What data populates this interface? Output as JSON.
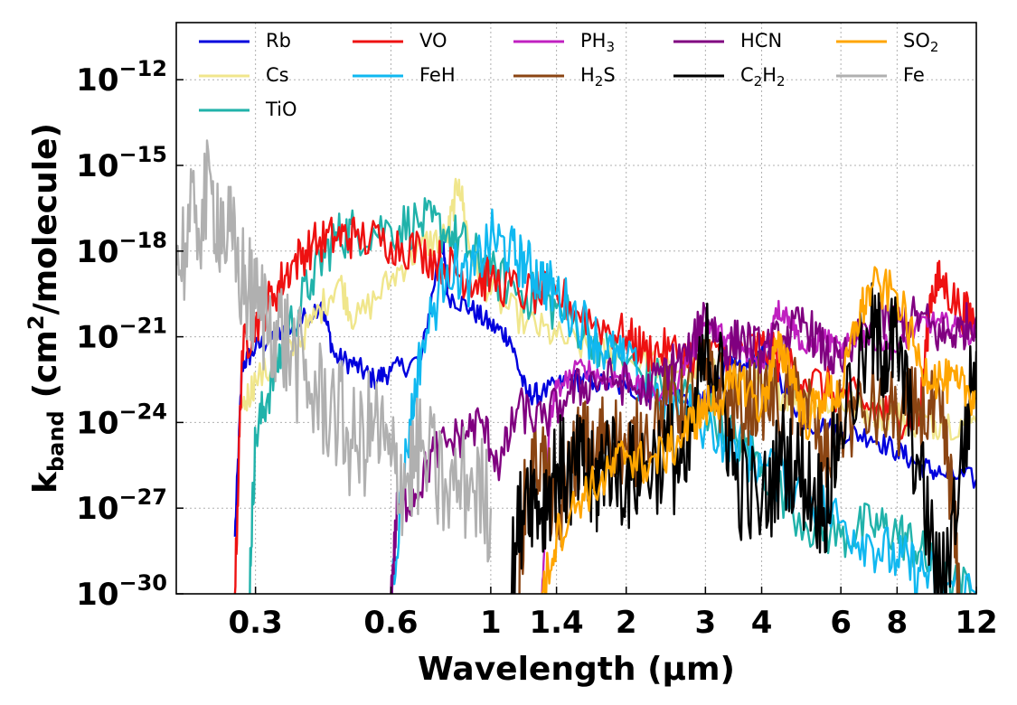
{
  "chart_data": {
    "type": "line",
    "title": "",
    "xlabel": "Wavelength (μm)",
    "ylabel": {
      "base": "k",
      "subscript": "band",
      "unit_open": "(cm",
      "unit_sup": "2",
      "unit_close": "/molecule)"
    },
    "xscale": "log",
    "yscale": "log",
    "xlim": [
      0.2,
      12
    ],
    "ylim": [
      1e-30,
      1e-10
    ],
    "xticks": [
      0.3,
      0.6,
      1,
      1.4,
      2,
      3,
      4,
      6,
      8,
      12
    ],
    "xtick_labels": [
      "0.3",
      "0.6",
      "1",
      "1.4",
      "2",
      "3",
      "4",
      "6",
      "8",
      "12"
    ],
    "yticks": [
      1e-30,
      1e-27,
      1e-24,
      1e-21,
      1e-18,
      1e-15,
      1e-12
    ],
    "ytick_base": "10",
    "ytick_exponents": [
      "−30",
      "−27",
      "−24",
      "−21",
      "−18",
      "−15",
      "−12"
    ],
    "grid": true,
    "legend_position": "top",
    "series": [
      {
        "name": "Rb",
        "label": {
          "text": "Rb"
        },
        "color": "#0000dd",
        "x": [
          0.27,
          0.28,
          0.3,
          0.33,
          0.36,
          0.42,
          0.45,
          0.5,
          0.55,
          0.6,
          0.7,
          0.78,
          0.8,
          0.9,
          1.0,
          1.1,
          1.2,
          1.3,
          1.5,
          1.7,
          2.0,
          2.4,
          2.8,
          3.0,
          3.3,
          3.6,
          4.0,
          4.4,
          5.0,
          6.0,
          7.0,
          8.0,
          9.0,
          10.0,
          12.0
        ],
        "y": [
          -28.0,
          -22.0,
          -21.4,
          -21.0,
          -20.8,
          -19.8,
          -21.7,
          -22.0,
          -22.5,
          -22.2,
          -21.8,
          -17.5,
          -19.5,
          -20.0,
          -20.6,
          -21.0,
          -23.0,
          -23.0,
          -22.5,
          -22.6,
          -22.8,
          -23.0,
          -23.2,
          -23.3,
          -22.0,
          -22.2,
          -21.5,
          -22.5,
          -24.0,
          -24.3,
          -24.5,
          -25.0,
          -25.5,
          -25.8,
          -26.0
        ]
      },
      {
        "name": "Cs",
        "label": {
          "text": "Cs"
        },
        "color": "#f0e68c",
        "x": [
          0.28,
          0.3,
          0.35,
          0.4,
          0.46,
          0.5,
          0.6,
          0.7,
          0.8,
          0.85,
          0.9,
          1.0,
          1.2,
          1.4,
          1.7,
          2.0,
          2.5,
          3.0,
          3.5,
          4.0,
          4.5,
          5.0,
          6.0,
          7.0,
          8.0,
          9.0,
          10.0,
          12.0
        ],
        "y": [
          -23.5,
          -22.5,
          -21.8,
          -20.5,
          -19.0,
          -20.5,
          -19.0,
          -17.8,
          -17.5,
          -15.5,
          -18.0,
          -19.5,
          -20.5,
          -21.0,
          -21.5,
          -21.8,
          -22.0,
          -22.2,
          -22.5,
          -22.8,
          -23.0,
          -23.2,
          -23.3,
          -23.6,
          -23.8,
          -24.0,
          -24.0,
          -24.0
        ]
      },
      {
        "name": "TiO",
        "label": {
          "text": "TiO"
        },
        "color": "#20b2aa",
        "x": [
          0.29,
          0.3,
          0.32,
          0.35,
          0.4,
          0.45,
          0.5,
          0.6,
          0.7,
          0.8,
          0.9,
          1.0,
          1.2,
          1.4,
          1.7,
          2.0,
          2.5,
          3.0,
          3.5,
          4.0,
          5.0,
          6.0,
          7.0,
          8.0,
          9.0,
          10.0,
          12.0
        ],
        "y": [
          -30.0,
          -24.5,
          -23.0,
          -21.0,
          -19.0,
          -17.5,
          -17.3,
          -17.2,
          -17.0,
          -17.3,
          -18.0,
          -18.8,
          -19.5,
          -20.0,
          -21.0,
          -22.0,
          -22.8,
          -23.5,
          -24.5,
          -25.5,
          -27.5,
          -28.0,
          -27.6,
          -27.8,
          -28.5,
          -29.5,
          -30.0
        ]
      },
      {
        "name": "VO",
        "label": {
          "text": "VO"
        },
        "color": "#ee1111",
        "x": [
          0.27,
          0.28,
          0.3,
          0.33,
          0.36,
          0.4,
          0.45,
          0.5,
          0.6,
          0.7,
          0.8,
          0.9,
          1.0,
          1.2,
          1.4,
          1.7,
          2.0,
          2.2,
          2.5,
          3.0,
          3.5,
          4.0,
          4.5,
          5.0,
          6.0,
          7.0,
          8.0,
          9.0,
          9.5,
          10.0,
          11.0,
          12.0
        ],
        "y": [
          -30.0,
          -21.5,
          -20.5,
          -19.5,
          -18.5,
          -17.8,
          -17.5,
          -17.5,
          -17.7,
          -18.0,
          -18.5,
          -19.0,
          -19.0,
          -19.5,
          -19.5,
          -20.5,
          -21.0,
          -21.5,
          -21.5,
          -21.8,
          -21.5,
          -21.3,
          -22.0,
          -22.5,
          -23.0,
          -23.5,
          -23.8,
          -23.7,
          -19.5,
          -19.0,
          -20.0,
          -20.5
        ]
      },
      {
        "name": "FeH",
        "label": {
          "text": "FeH"
        },
        "color": "#10b8f0",
        "x": [
          0.6,
          0.65,
          0.7,
          0.8,
          0.9,
          1.0,
          1.1,
          1.2,
          1.3,
          1.4,
          1.6,
          1.8,
          2.0,
          2.5,
          3.0,
          3.5,
          4.0,
          5.0,
          6.0,
          7.0,
          8.0,
          9.0,
          10.0,
          12.0
        ],
        "y": [
          -30.0,
          -25.0,
          -21.5,
          -18.5,
          -19.0,
          -17.5,
          -18.0,
          -18.5,
          -19.0,
          -19.5,
          -20.5,
          -21.5,
          -22.0,
          -23.5,
          -24.0,
          -24.8,
          -25.5,
          -26.5,
          -27.5,
          -28.2,
          -28.8,
          -29.2,
          -29.6,
          -30.0
        ]
      },
      {
        "name": "PH3",
        "label": {
          "text": "PH",
          "sub": "3"
        },
        "color": "#c020c0",
        "x": [
          1.3,
          1.35,
          1.4,
          1.6,
          1.8,
          2.0,
          2.2,
          2.5,
          2.8,
          3.0,
          3.3,
          3.6,
          4.0,
          4.3,
          4.6,
          5.0,
          5.5,
          6.0,
          6.5,
          7.0,
          8.0,
          9.0,
          10.0,
          11.0,
          12.0
        ],
        "y": [
          -30.0,
          -24.0,
          -22.8,
          -22.0,
          -22.5,
          -22.3,
          -23.0,
          -23.0,
          -21.5,
          -20.5,
          -21.0,
          -21.5,
          -22.0,
          -20.0,
          -20.3,
          -21.5,
          -21.0,
          -21.5,
          -21.0,
          -21.0,
          -21.5,
          -20.5,
          -20.5,
          -20.7,
          -21.0
        ]
      },
      {
        "name": "H2S",
        "label": {
          "text": "H",
          "sub": "2",
          "tail": "S"
        },
        "color": "#8b4513",
        "x": [
          1.15,
          1.2,
          1.3,
          1.4,
          1.5,
          1.6,
          1.7,
          1.8,
          2.0,
          2.2,
          2.5,
          2.7,
          3.0,
          3.3,
          3.6,
          4.0,
          4.5,
          5.0,
          5.5,
          6.0,
          7.0,
          8.0,
          9.0,
          10.0,
          10.5,
          11.0
        ],
        "y": [
          -30.0,
          -26.0,
          -25.0,
          -28.0,
          -25.5,
          -24.5,
          -25.5,
          -24.0,
          -25.0,
          -24.5,
          -23.0,
          -23.5,
          -22.5,
          -23.0,
          -23.5,
          -23.0,
          -23.5,
          -23.0,
          -25.5,
          -24.0,
          -23.5,
          -23.8,
          -23.5,
          -24.0,
          -26.0,
          -30.0
        ]
      },
      {
        "name": "HCN",
        "label": {
          "text": "HCN"
        },
        "color": "#800080",
        "x": [
          0.6,
          0.62,
          0.68,
          0.75,
          0.85,
          0.95,
          1.05,
          1.15,
          1.3,
          1.5,
          1.7,
          1.9,
          2.2,
          2.5,
          2.8,
          3.0,
          3.3,
          3.6,
          4.0,
          4.5,
          5.0,
          5.5,
          6.0,
          7.0,
          8.0,
          9.0,
          10.0,
          11.0,
          12.0
        ],
        "y": [
          -30.0,
          -27.0,
          -26.5,
          -25.0,
          -24.5,
          -24.0,
          -25.5,
          -23.5,
          -24.0,
          -23.0,
          -22.5,
          -22.5,
          -23.0,
          -22.0,
          -21.5,
          -20.0,
          -21.5,
          -21.0,
          -21.5,
          -21.0,
          -20.5,
          -21.5,
          -22.0,
          -20.5,
          -20.5,
          -20.3,
          -21.0,
          -20.8,
          -20.3
        ]
      },
      {
        "name": "C2H2",
        "label": {
          "text": "C",
          "sub": "2",
          "tail": "H",
          "sub2": "2"
        },
        "color": "#000000",
        "x": [
          1.1,
          1.2,
          1.3,
          1.4,
          1.5,
          1.6,
          1.7,
          1.8,
          2.0,
          2.2,
          2.5,
          2.7,
          3.0,
          3.2,
          3.5,
          4.0,
          4.5,
          5.0,
          5.5,
          6.0,
          7.0,
          7.5,
          8.0,
          9.0,
          10.0,
          11.0,
          12.0
        ],
        "y": [
          -30.0,
          -26.0,
          -27.0,
          -25.5,
          -26.0,
          -25.5,
          -26.5,
          -25.0,
          -26.0,
          -25.5,
          -25.0,
          -26.0,
          -21.5,
          -22.0,
          -26.0,
          -27.0,
          -25.0,
          -26.0,
          -27.0,
          -24.0,
          -21.0,
          -21.5,
          -21.2,
          -26.0,
          -30.0,
          -26.0,
          -21.5
        ]
      },
      {
        "name": "SO2",
        "label": {
          "text": "SO",
          "sub": "2"
        },
        "color": "#ffa500",
        "x": [
          1.3,
          1.4,
          1.6,
          1.8,
          2.0,
          2.2,
          2.5,
          2.8,
          3.0,
          3.3,
          3.6,
          4.0,
          4.3,
          4.6,
          5.0,
          5.5,
          6.0,
          6.5,
          7.0,
          8.0,
          9.0,
          10.0,
          11.0,
          12.0
        ],
        "y": [
          -30.0,
          -28.0,
          -26.5,
          -26.0,
          -25.0,
          -25.5,
          -25.0,
          -24.0,
          -23.5,
          -23.0,
          -22.5,
          -23.5,
          -21.5,
          -21.8,
          -24.0,
          -23.0,
          -23.0,
          -20.5,
          -19.3,
          -19.5,
          -22.0,
          -22.5,
          -22.8,
          -23.0
        ]
      },
      {
        "name": "Fe",
        "label": {
          "text": "Fe"
        },
        "color": "#b0b0b0",
        "x": [
          0.2,
          0.22,
          0.24,
          0.26,
          0.28,
          0.3,
          0.33,
          0.36,
          0.4,
          0.45,
          0.5,
          0.55,
          0.6,
          0.65,
          0.7,
          0.8,
          0.9,
          1.0
        ],
        "y": [
          -18.5,
          -17.0,
          -16.0,
          -17.5,
          -19.0,
          -20.0,
          -20.5,
          -21.5,
          -23.0,
          -23.5,
          -25.0,
          -24.0,
          -25.5,
          -26.0,
          -25.0,
          -26.5,
          -26.0,
          -27.0
        ]
      }
    ]
  }
}
